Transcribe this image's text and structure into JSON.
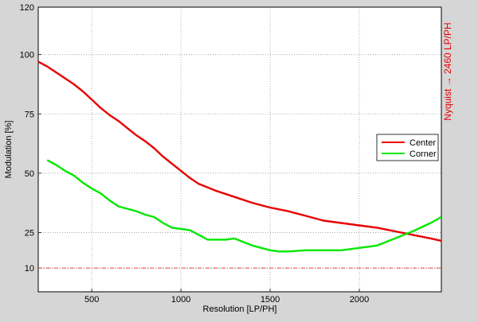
{
  "chart_data": {
    "type": "line",
    "xlabel": "Resolution [LP/PH]",
    "ylabel": "Modulation [%]",
    "right_label": "Nyquist → 2460 LP/PH",
    "xlim": [
      200,
      2460
    ],
    "ylim": [
      0,
      120
    ],
    "xticks": [
      500,
      1000,
      1500,
      2000
    ],
    "yticks": [
      10,
      25,
      50,
      75,
      100,
      120
    ],
    "grid": true,
    "legend_position": "right",
    "reference_line": {
      "y": 10,
      "color": "#e84040"
    },
    "series": [
      {
        "name": "Center",
        "color": "#e80000",
        "x": [
          200,
          250,
          300,
          350,
          400,
          450,
          500,
          550,
          600,
          650,
          700,
          750,
          800,
          850,
          900,
          950,
          1000,
          1050,
          1100,
          1150,
          1200,
          1300,
          1400,
          1500,
          1600,
          1700,
          1800,
          1900,
          2000,
          2100,
          2200,
          2300,
          2400,
          2460
        ],
        "y": [
          97,
          95,
          92.5,
          90,
          87.5,
          84.5,
          81,
          77.5,
          74.5,
          72,
          69,
          66,
          63.5,
          60.5,
          57,
          54,
          51,
          48,
          45.5,
          44,
          42.5,
          40,
          37.5,
          35.5,
          34,
          32,
          30,
          29,
          28,
          27,
          25.5,
          24,
          22.5,
          21.5
        ]
      },
      {
        "name": "Corner",
        "color": "#00e800",
        "x": [
          250,
          300,
          350,
          400,
          450,
          500,
          550,
          600,
          650,
          700,
          750,
          800,
          850,
          900,
          950,
          1000,
          1050,
          1100,
          1150,
          1200,
          1250,
          1300,
          1350,
          1400,
          1450,
          1500,
          1550,
          1600,
          1700,
          1800,
          1900,
          2000,
          2100,
          2200,
          2300,
          2400,
          2460
        ],
        "y": [
          55.5,
          53.5,
          51,
          49,
          46,
          43.5,
          41.5,
          38.5,
          36,
          35,
          34,
          32.5,
          31.5,
          29,
          27,
          26.5,
          26,
          24,
          22,
          22,
          22,
          22.5,
          21,
          19.5,
          18.5,
          17.5,
          17,
          17,
          17.5,
          17.5,
          17.5,
          18.5,
          19.5,
          22.5,
          25.5,
          29,
          31.5
        ]
      }
    ]
  }
}
